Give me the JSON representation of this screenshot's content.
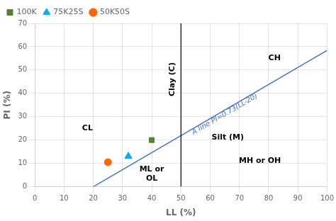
{
  "chart_data": {
    "type": "scatter",
    "xlabel": "LL (%)",
    "ylabel": "PI (%)",
    "xlim": [
      0,
      100
    ],
    "ylim": [
      0,
      70
    ],
    "xticks": [
      0,
      10,
      20,
      30,
      40,
      50,
      60,
      70,
      80,
      90,
      100
    ],
    "yticks": [
      0,
      10,
      20,
      30,
      40,
      50,
      60,
      70
    ],
    "grid": true,
    "legend": "upper left",
    "series": [
      {
        "name": "100K",
        "color": "#548235",
        "marker": "square",
        "x": [
          40
        ],
        "y": [
          20
        ]
      },
      {
        "name": "75K25S",
        "color": "#00B0F0",
        "marker": "triangle",
        "x": [
          32
        ],
        "y": [
          13
        ]
      },
      {
        "name": "50K50S",
        "color": "#FF6600",
        "marker": "circle",
        "x": [
          25
        ],
        "y": [
          10.5
        ]
      }
    ],
    "reference_lines": [
      {
        "x": [
          20,
          100
        ],
        "y": [
          0,
          58.4
        ],
        "color": "#4472C4",
        "label": {
          "text": "A line PI=0.73(LL-20)",
          "x": 65,
          "y": 31,
          "color": "#4472C4"
        }
      }
    ],
    "vertical_lines": [
      {
        "x": 50,
        "color": "black"
      }
    ],
    "annotations": [
      {
        "text": "CH",
        "x": 82,
        "y": 55,
        "color": "black"
      },
      {
        "text": "CL",
        "x": 18,
        "y": 25,
        "color": "black"
      },
      {
        "text": "Clay (C)",
        "x": 47,
        "y": 46,
        "color": "black"
      },
      {
        "text": "Silt (M)",
        "x": 66,
        "y": 21,
        "color": "black"
      },
      {
        "text": "MH or OH",
        "x": 77,
        "y": 11,
        "color": "black"
      },
      {
        "text": "ML or\nOL",
        "x": 40,
        "y": 5.5,
        "color": "black"
      }
    ]
  }
}
